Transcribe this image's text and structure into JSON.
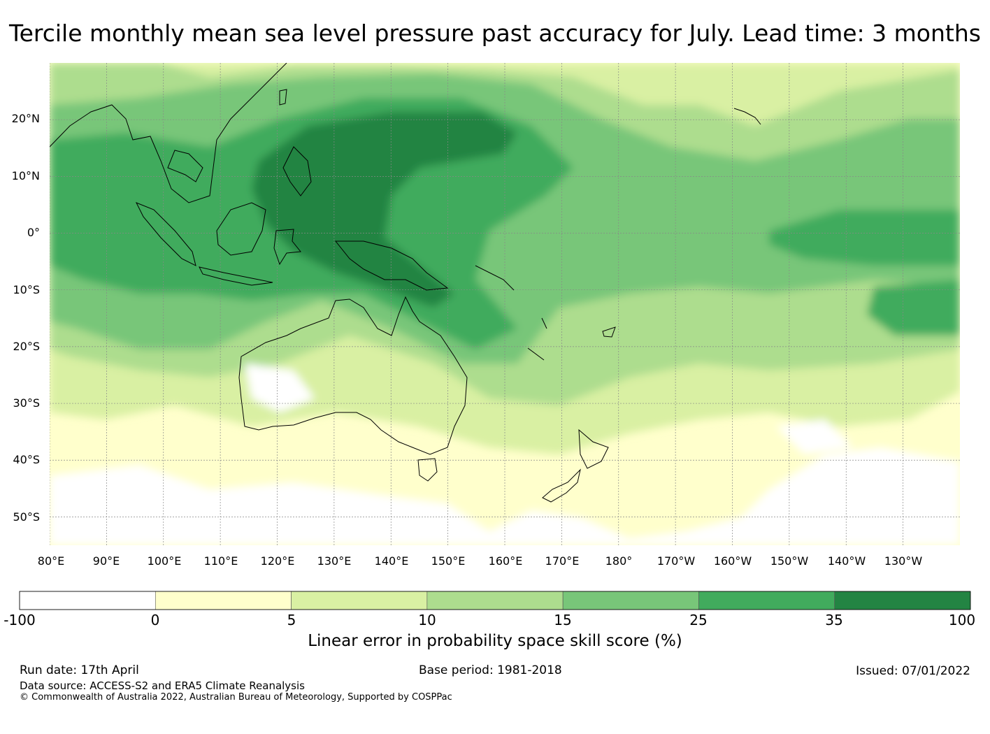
{
  "title": "Tercile monthly mean sea level pressure past accuracy for July. Lead time: 3 months",
  "map": {
    "lon_min": 80,
    "lon_max": 240,
    "lat_min": -55,
    "lat_max": 30,
    "lat_labels": [
      "20°N",
      "10°N",
      "0°",
      "10°S",
      "20°S",
      "30°S",
      "40°S",
      "50°S"
    ],
    "lat_values": [
      20,
      10,
      0,
      -10,
      -20,
      -30,
      -40,
      -50
    ],
    "lon_labels": [
      "80°E",
      "90°E",
      "100°E",
      "110°E",
      "120°E",
      "130°E",
      "140°E",
      "150°E",
      "160°E",
      "170°E",
      "180°",
      "170°W",
      "160°W",
      "150°W",
      "140°W",
      "130°W"
    ],
    "lon_values": [
      80,
      90,
      100,
      110,
      120,
      130,
      140,
      150,
      160,
      170,
      180,
      190,
      200,
      210,
      220,
      230
    ]
  },
  "colorbar": {
    "bounds": [
      "-100",
      "0",
      "5",
      "10",
      "15",
      "25",
      "35",
      "100"
    ],
    "colors": [
      "#ffffff",
      "#ffffcc",
      "#d9f0a3",
      "#addd8e",
      "#78c679",
      "#41ab5d",
      "#238443"
    ],
    "label": "Linear error in probability space skill score (%)"
  },
  "footer": {
    "run_date": "Run date: 17th April",
    "base_period": "Base period: 1981-2018",
    "issued": "Issued: 07/01/2022",
    "data_source": "Data source: ACCESS-S2 and ERA5 Climate Reanalysis",
    "copyright": "© Commonwealth of Australia 2022, Australian Bureau of Meteorology, Supported by COSPPac"
  }
}
